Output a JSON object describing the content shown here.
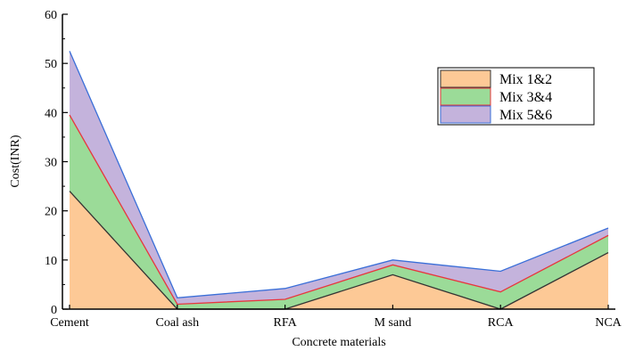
{
  "chart_data": {
    "type": "area",
    "stacked": true,
    "categories": [
      "Cement",
      "Coal ash",
      "RFA",
      "M sand",
      "RCA",
      "NCA"
    ],
    "series": [
      {
        "name": "Mix 1&2",
        "values": [
          24,
          0,
          0,
          7,
          0,
          11.5
        ],
        "fill": "#fdc996",
        "line": "#333333"
      },
      {
        "name": "Mix 3&4",
        "values": [
          15.5,
          1,
          2,
          2,
          3.5,
          3.5
        ],
        "fill": "#9bdb98",
        "line": "#e8363d"
      },
      {
        "name": "Mix 5&6",
        "values": [
          13,
          1.3,
          2.2,
          1,
          4.2,
          1.5
        ],
        "fill": "#c4b3dc",
        "line": "#3a6fd8"
      }
    ],
    "xlabel": "Concrete materials",
    "ylabel": "Cost(INR)",
    "ylim": [
      0,
      60
    ],
    "yticks": [
      0,
      10,
      20,
      30,
      40,
      50,
      60
    ],
    "grid": false,
    "legend_position": "top-right"
  }
}
